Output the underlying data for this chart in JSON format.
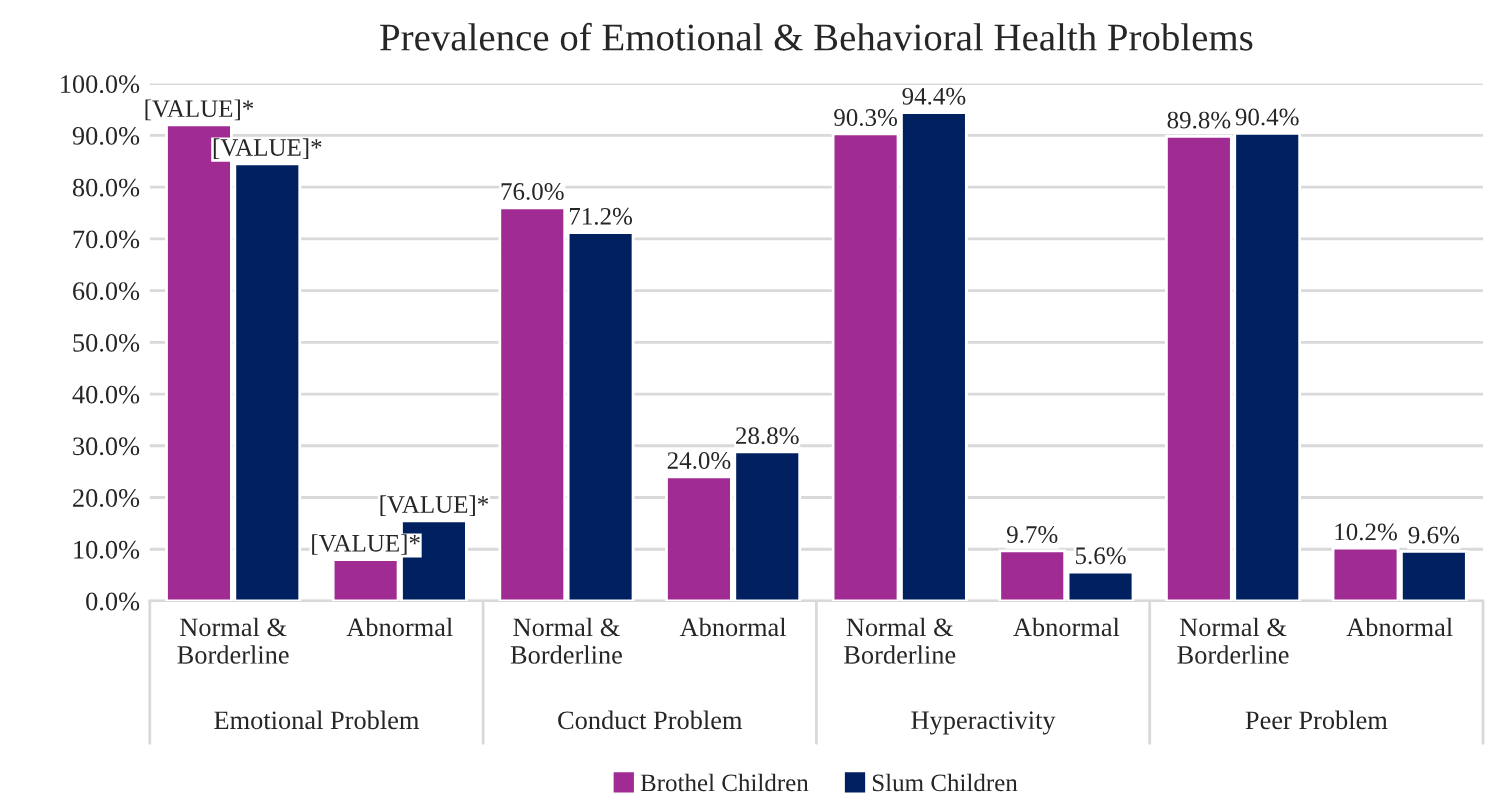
{
  "chart_data": {
    "type": "bar",
    "title": "Prevalence of Emotional & Behavioral Health Problems",
    "categories": [
      "Normal &\nBorderline",
      "Abnormal",
      "Normal &\nBorderline",
      "Abnormal",
      "Normal &\nBorderline",
      "Abnormal",
      "Normal &\nBorderline",
      "Abnormal"
    ],
    "annotations": [
      "Emotional Problem",
      "Conduct Problem",
      "Hyperactivity",
      "Peer Problem"
    ],
    "series": [
      {
        "name": "Brothel Children",
        "color": "#a02b93",
        "values": [
          92.0,
          8.0,
          76.0,
          24.0,
          90.3,
          9.7,
          89.8,
          10.2
        ],
        "value_labels": [
          "[VALUE]*",
          "[VALUE]*",
          "76.0%",
          "24.0%",
          "90.3%",
          "9.7%",
          "89.8%",
          "10.2%"
        ]
      },
      {
        "name": "Slum Children",
        "color": "#002060",
        "values": [
          84.5,
          15.5,
          71.2,
          28.8,
          94.4,
          5.6,
          90.4,
          9.6
        ],
        "value_labels": [
          "[VALUE]*",
          "[VALUE]*",
          "71.2%",
          "28.8%",
          "94.4%",
          "5.6%",
          "90.4%",
          "9.6%"
        ]
      }
    ],
    "ylim": [
      0,
      100
    ],
    "yticks": [
      {
        "value": 0,
        "label": "0.0%"
      },
      {
        "value": 10,
        "label": "10.0%"
      },
      {
        "value": 20,
        "label": "20.0%"
      },
      {
        "value": 30,
        "label": "30.0%"
      },
      {
        "value": 40,
        "label": "40.0%"
      },
      {
        "value": 50,
        "label": "50.0%"
      },
      {
        "value": 60,
        "label": "60.0%"
      },
      {
        "value": 70,
        "label": "70.0%"
      },
      {
        "value": 80,
        "label": "80.0%"
      },
      {
        "value": 90,
        "label": "90.0%"
      },
      {
        "value": 100,
        "label": "100.0%"
      }
    ],
    "grid": "y",
    "legend": "bottom"
  }
}
